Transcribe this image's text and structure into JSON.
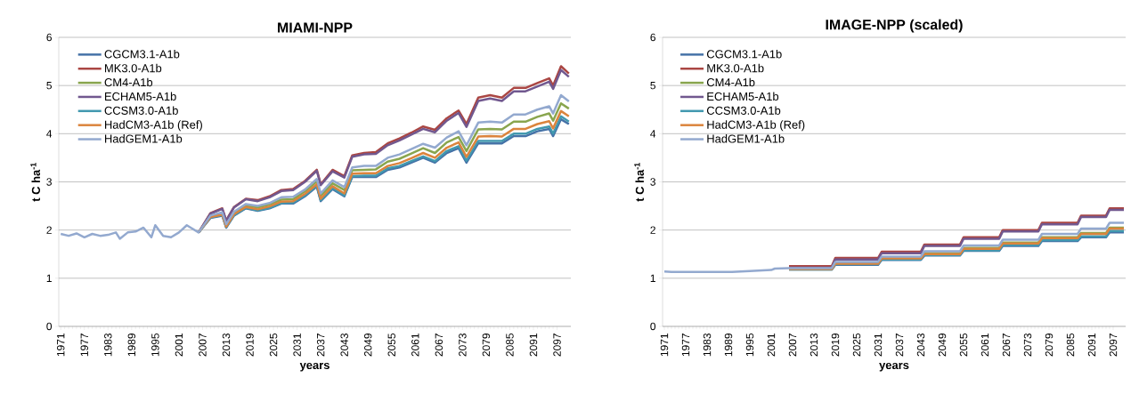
{
  "chart_data": [
    {
      "type": "line",
      "title": "MIAMI-NPP",
      "xlabel": "years",
      "ylabel": "t C ha$^{-1}$",
      "xlim": [
        1970.5,
        2100.5
      ],
      "ylim": [
        0,
        6
      ],
      "yticks": [
        0,
        1,
        2,
        3,
        4,
        5,
        6
      ],
      "xticks": [
        1971,
        1977,
        1983,
        1989,
        1995,
        2001,
        2007,
        2013,
        2019,
        2025,
        2031,
        2037,
        2043,
        2049,
        2055,
        2061,
        2067,
        2073,
        2079,
        2085,
        2091,
        2097
      ],
      "grid": "y",
      "legend": "top left",
      "series": [
        {
          "name": "CGCM3.1-A1b",
          "color": "#4572a7",
          "x": [
            2006,
            2009,
            2012,
            2013,
            2015,
            2018,
            2021,
            2024,
            2027,
            2030,
            2033,
            2036,
            2037,
            2040,
            2043,
            2045,
            2048,
            2051,
            2054,
            2057,
            2060,
            2063,
            2066,
            2069,
            2072,
            2074,
            2077,
            2080,
            2083,
            2086,
            2089,
            2092,
            2095,
            2096,
            2098,
            2100
          ],
          "values": [
            1.95,
            2.25,
            2.3,
            2.05,
            2.3,
            2.45,
            2.4,
            2.45,
            2.55,
            2.55,
            2.7,
            2.9,
            2.6,
            2.85,
            2.7,
            3.1,
            3.1,
            3.1,
            3.25,
            3.3,
            3.4,
            3.5,
            3.4,
            3.6,
            3.7,
            3.4,
            3.8,
            3.8,
            3.8,
            3.95,
            3.95,
            4.05,
            4.1,
            3.95,
            4.3,
            4.2
          ]
        },
        {
          "name": "MK3.0-A1b",
          "color": "#aa4643",
          "x": [
            2006,
            2009,
            2012,
            2013,
            2015,
            2018,
            2021,
            2024,
            2027,
            2030,
            2033,
            2036,
            2037,
            2040,
            2043,
            2045,
            2048,
            2051,
            2054,
            2057,
            2060,
            2063,
            2066,
            2069,
            2072,
            2074,
            2077,
            2080,
            2083,
            2086,
            2089,
            2092,
            2095,
            2096,
            2098,
            2100
          ],
          "values": [
            1.95,
            2.35,
            2.45,
            2.2,
            2.48,
            2.65,
            2.62,
            2.7,
            2.83,
            2.85,
            3.02,
            3.25,
            2.95,
            3.25,
            3.12,
            3.55,
            3.6,
            3.62,
            3.8,
            3.9,
            4.02,
            4.15,
            4.08,
            4.32,
            4.48,
            4.2,
            4.75,
            4.8,
            4.75,
            4.95,
            4.95,
            5.05,
            5.15,
            5.0,
            5.4,
            5.25
          ]
        },
        {
          "name": "CM4-A1b",
          "color": "#89a54e",
          "x": [
            2006,
            2009,
            2012,
            2013,
            2015,
            2018,
            2021,
            2024,
            2027,
            2030,
            2033,
            2036,
            2037,
            2040,
            2043,
            2045,
            2048,
            2051,
            2054,
            2057,
            2060,
            2063,
            2066,
            2069,
            2072,
            2074,
            2077,
            2080,
            2083,
            2086,
            2089,
            2092,
            2095,
            2096,
            2098,
            2100
          ],
          "values": [
            1.95,
            2.28,
            2.35,
            2.1,
            2.35,
            2.51,
            2.47,
            2.53,
            2.63,
            2.64,
            2.8,
            3.01,
            2.71,
            2.97,
            2.83,
            3.24,
            3.25,
            3.26,
            3.42,
            3.48,
            3.59,
            3.7,
            3.6,
            3.82,
            3.93,
            3.64,
            4.09,
            4.1,
            4.09,
            4.25,
            4.25,
            4.35,
            4.42,
            4.27,
            4.63,
            4.52
          ]
        },
        {
          "name": "ECHAM5-A1b",
          "color": "#71588f",
          "x": [
            2006,
            2009,
            2012,
            2013,
            2015,
            2018,
            2021,
            2024,
            2027,
            2030,
            2033,
            2036,
            2037,
            2040,
            2043,
            2045,
            2048,
            2051,
            2054,
            2057,
            2060,
            2063,
            2066,
            2069,
            2072,
            2074,
            2077,
            2080,
            2083,
            2086,
            2089,
            2092,
            2095,
            2096,
            2098,
            2100
          ],
          "values": [
            1.95,
            2.34,
            2.44,
            2.19,
            2.47,
            2.64,
            2.6,
            2.68,
            2.81,
            2.83,
            3.0,
            3.23,
            2.93,
            3.22,
            3.09,
            3.52,
            3.57,
            3.58,
            3.76,
            3.86,
            3.98,
            4.1,
            4.03,
            4.27,
            4.43,
            4.14,
            4.68,
            4.73,
            4.68,
            4.88,
            4.88,
            4.98,
            5.08,
            4.93,
            5.32,
            5.18
          ]
        },
        {
          "name": "CCSM3.0-A1b",
          "color": "#4198af",
          "x": [
            2006,
            2009,
            2012,
            2013,
            2015,
            2018,
            2021,
            2024,
            2027,
            2030,
            2033,
            2036,
            2037,
            2040,
            2043,
            2045,
            2048,
            2051,
            2054,
            2057,
            2060,
            2063,
            2066,
            2069,
            2072,
            2074,
            2077,
            2080,
            2083,
            2086,
            2089,
            2092,
            2095,
            2096,
            2098,
            2100
          ],
          "values": [
            1.95,
            2.26,
            2.31,
            2.06,
            2.31,
            2.46,
            2.41,
            2.46,
            2.56,
            2.57,
            2.72,
            2.92,
            2.62,
            2.87,
            2.72,
            3.12,
            3.13,
            3.13,
            3.28,
            3.33,
            3.43,
            3.53,
            3.43,
            3.64,
            3.74,
            3.44,
            3.85,
            3.85,
            3.85,
            4.0,
            4.0,
            4.1,
            4.15,
            4.0,
            4.36,
            4.25
          ]
        },
        {
          "name": "HadCM3-A1b (Ref)",
          "color": "#db843d",
          "x": [
            2006,
            2009,
            2012,
            2013,
            2015,
            2018,
            2021,
            2024,
            2027,
            2030,
            2033,
            2036,
            2037,
            2040,
            2043,
            2045,
            2048,
            2051,
            2054,
            2057,
            2060,
            2063,
            2066,
            2069,
            2072,
            2074,
            2077,
            2080,
            2083,
            2086,
            2089,
            2092,
            2095,
            2096,
            2098,
            2100
          ],
          "values": [
            1.95,
            2.27,
            2.32,
            2.07,
            2.33,
            2.48,
            2.43,
            2.49,
            2.59,
            2.6,
            2.75,
            2.95,
            2.65,
            2.91,
            2.76,
            3.17,
            3.18,
            3.18,
            3.33,
            3.39,
            3.49,
            3.6,
            3.5,
            3.71,
            3.82,
            3.52,
            3.94,
            3.95,
            3.94,
            4.1,
            4.1,
            4.2,
            4.26,
            4.11,
            4.47,
            4.36
          ]
        },
        {
          "name": "HadGEM1-A1b",
          "color": "#93a9cf",
          "x": [
            1971,
            1973,
            1975,
            1977,
            1979,
            1981,
            1983,
            1985,
            1986,
            1988,
            1990,
            1992,
            1994,
            1995,
            1997,
            1999,
            2001,
            2003,
            2004,
            2006,
            2009,
            2012,
            2013,
            2015,
            2018,
            2021,
            2024,
            2027,
            2030,
            2033,
            2036,
            2037,
            2040,
            2043,
            2045,
            2048,
            2051,
            2054,
            2057,
            2060,
            2063,
            2066,
            2069,
            2072,
            2074,
            2077,
            2080,
            2083,
            2086,
            2089,
            2092,
            2095,
            2096,
            2098,
            2100
          ],
          "values": [
            1.92,
            1.88,
            1.93,
            1.85,
            1.92,
            1.88,
            1.9,
            1.95,
            1.82,
            1.95,
            1.97,
            2.05,
            1.85,
            2.1,
            1.88,
            1.85,
            1.95,
            2.1,
            2.05,
            1.95,
            2.3,
            2.37,
            2.12,
            2.38,
            2.54,
            2.5,
            2.56,
            2.68,
            2.69,
            2.84,
            3.06,
            2.76,
            3.03,
            2.89,
            3.3,
            3.33,
            3.33,
            3.5,
            3.57,
            3.68,
            3.79,
            3.71,
            3.92,
            4.05,
            3.76,
            4.23,
            4.25,
            4.23,
            4.4,
            4.4,
            4.5,
            4.57,
            4.42,
            4.8,
            4.67
          ]
        }
      ]
    },
    {
      "type": "line",
      "title": "IMAGE-NPP (scaled)",
      "xlabel": "years",
      "ylabel": "t C ha$^{-1}$",
      "xlim": [
        1970.5,
        2100.5
      ],
      "ylim": [
        0,
        6
      ],
      "yticks": [
        0,
        1,
        2,
        3,
        4,
        5,
        6
      ],
      "xticks": [
        1971,
        1977,
        1983,
        1989,
        1995,
        2001,
        2007,
        2013,
        2019,
        2025,
        2031,
        2037,
        2043,
        2049,
        2055,
        2061,
        2067,
        2073,
        2079,
        2085,
        2091,
        2097
      ],
      "grid": "y",
      "legend": "top left",
      "series": [
        {
          "name": "CGCM3.1-A1b",
          "color": "#4572a7",
          "x": [
            2006,
            2018,
            2019,
            2031,
            2032,
            2043,
            2044,
            2054,
            2055,
            2065,
            2066,
            2076,
            2077,
            2087,
            2088,
            2095,
            2096,
            2100
          ],
          "values": [
            1.18,
            1.18,
            1.28,
            1.28,
            1.38,
            1.38,
            1.47,
            1.47,
            1.57,
            1.57,
            1.67,
            1.67,
            1.77,
            1.77,
            1.85,
            1.85,
            1.95,
            1.95
          ]
        },
        {
          "name": "MK3.0-A1b",
          "color": "#aa4643",
          "x": [
            2006,
            2018,
            2019,
            2031,
            2032,
            2043,
            2044,
            2054,
            2055,
            2065,
            2066,
            2076,
            2077,
            2087,
            2088,
            2095,
            2096,
            2100
          ],
          "values": [
            1.25,
            1.25,
            1.42,
            1.42,
            1.55,
            1.55,
            1.7,
            1.7,
            1.85,
            1.85,
            2.0,
            2.0,
            2.15,
            2.15,
            2.3,
            2.3,
            2.45,
            2.45
          ]
        },
        {
          "name": "CM4-A1b",
          "color": "#89a54e",
          "x": [
            2019,
            2031,
            2032,
            2043,
            2044,
            2054,
            2055,
            2065,
            2066,
            2076,
            2077,
            2087,
            2088,
            2095,
            2096,
            2100
          ],
          "values": [
            1.31,
            1.31,
            1.41,
            1.41,
            1.52,
            1.52,
            1.63,
            1.63,
            1.74,
            1.74,
            1.85,
            1.85,
            1.94,
            1.94,
            2.05,
            2.05
          ]
        },
        {
          "name": "ECHAM5-A1b",
          "color": "#71588f",
          "x": [
            2006,
            2018,
            2019,
            2031,
            2032,
            2043,
            2044,
            2054,
            2055,
            2065,
            2066,
            2076,
            2077,
            2087,
            2088,
            2095,
            2096,
            2100
          ],
          "values": [
            1.22,
            1.22,
            1.39,
            1.39,
            1.52,
            1.52,
            1.67,
            1.67,
            1.82,
            1.82,
            1.97,
            1.97,
            2.12,
            2.12,
            2.27,
            2.27,
            2.42,
            2.42
          ]
        },
        {
          "name": "CCSM3.0-A1b",
          "color": "#4198af",
          "x": [
            2006,
            2018,
            2019,
            2031,
            2032,
            2043,
            2044,
            2054,
            2055,
            2065,
            2066,
            2076,
            2077,
            2087,
            2088,
            2095,
            2096,
            2100
          ],
          "values": [
            1.18,
            1.18,
            1.29,
            1.29,
            1.39,
            1.39,
            1.48,
            1.48,
            1.58,
            1.58,
            1.69,
            1.69,
            1.79,
            1.79,
            1.87,
            1.87,
            1.98,
            1.98
          ]
        },
        {
          "name": "HadCM3-A1b (Ref)",
          "color": "#db843d",
          "x": [
            2006,
            2018,
            2019,
            2031,
            2032,
            2043,
            2044,
            2054,
            2055,
            2065,
            2066,
            2076,
            2077,
            2087,
            2088,
            2095,
            2096,
            2100
          ],
          "values": [
            1.19,
            1.19,
            1.3,
            1.3,
            1.41,
            1.41,
            1.5,
            1.5,
            1.61,
            1.61,
            1.72,
            1.72,
            1.83,
            1.83,
            1.92,
            1.92,
            2.03,
            2.03
          ]
        },
        {
          "name": "HadGEM1-A1b",
          "color": "#93a9cf",
          "x": [
            1971,
            1973,
            1990,
            1995,
            2001,
            2002,
            2006,
            2018,
            2019,
            2031,
            2032,
            2043,
            2044,
            2054,
            2055,
            2065,
            2066,
            2076,
            2077,
            2087,
            2088,
            2095,
            2096,
            2100
          ],
          "values": [
            1.14,
            1.13,
            1.13,
            1.15,
            1.17,
            1.2,
            1.21,
            1.21,
            1.34,
            1.34,
            1.45,
            1.45,
            1.56,
            1.56,
            1.68,
            1.68,
            1.8,
            1.8,
            1.92,
            1.92,
            2.03,
            2.03,
            2.15,
            2.15
          ]
        }
      ]
    }
  ]
}
